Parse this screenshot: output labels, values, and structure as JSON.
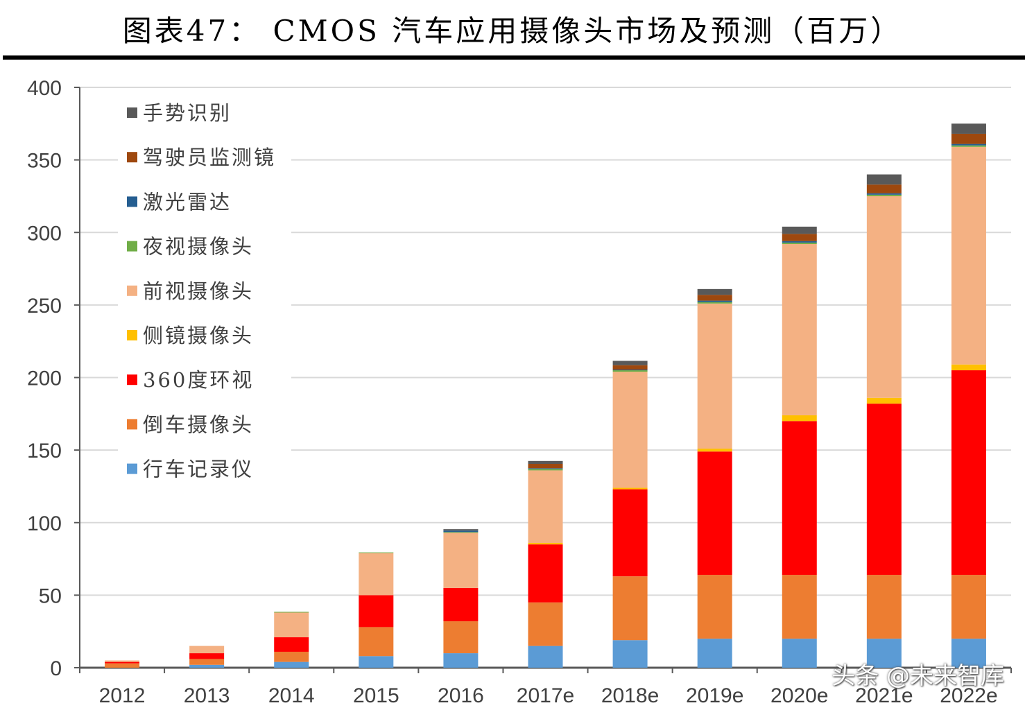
{
  "title": "图表47：  CMOS 汽车应用摄像头市场及预测（百万）",
  "watermark": "头条 @未来智库",
  "chart_data": {
    "type": "bar",
    "stacked": true,
    "categories": [
      "2012",
      "2013",
      "2014",
      "2015",
      "2016",
      "2017e",
      "2018e",
      "2019e",
      "2020e",
      "2021e",
      "2022e"
    ],
    "ylim": [
      0,
      400
    ],
    "yticks": [
      0,
      50,
      100,
      150,
      200,
      250,
      300,
      350,
      400
    ],
    "grid": true,
    "legend_position": "top-left",
    "series": [
      {
        "name": "行车记录仪",
        "color": "#5b9bd5",
        "values": [
          0,
          2,
          4,
          8,
          10,
          15,
          19,
          20,
          20,
          20,
          20
        ]
      },
      {
        "name": "倒车摄像头",
        "color": "#ed7d31",
        "values": [
          3,
          4,
          7,
          20,
          22,
          30,
          44,
          44,
          44,
          44,
          44
        ]
      },
      {
        "name": "360度环视",
        "color": "#ff0000",
        "values": [
          1,
          4,
          10,
          22,
          23,
          40,
          60,
          85,
          106,
          118,
          141
        ]
      },
      {
        "name": "侧镜摄像头",
        "color": "#ffc000",
        "values": [
          0,
          0,
          0,
          0,
          0,
          1,
          1,
          2,
          4,
          4,
          4
        ]
      },
      {
        "name": "前视摄像头",
        "color": "#f4b183",
        "values": [
          1,
          5,
          17,
          29,
          38,
          50,
          80,
          100,
          118,
          139,
          150
        ]
      },
      {
        "name": "夜视摄像头",
        "color": "#70ad47",
        "values": [
          0,
          0,
          0.5,
          0.5,
          0.5,
          1,
          1,
          1,
          1,
          1,
          1
        ]
      },
      {
        "name": "激光雷达",
        "color": "#255e91",
        "values": [
          0,
          0,
          0,
          0,
          1,
          0.5,
          0.5,
          1,
          1,
          1,
          1
        ]
      },
      {
        "name": "驾驶员监测镜",
        "color": "#9e480e",
        "values": [
          0,
          0,
          0,
          0,
          0,
          3,
          3,
          4,
          5,
          6,
          7
        ]
      },
      {
        "name": "手势识别",
        "color": "#595959",
        "values": [
          0,
          0,
          0,
          0,
          1,
          2,
          3,
          4,
          5,
          7,
          7
        ]
      }
    ],
    "legend_order": [
      "手势识别",
      "驾驶员监测镜",
      "激光雷达",
      "夜视摄像头",
      "前视摄像头",
      "侧镜摄像头",
      "360度环视",
      "倒车摄像头",
      "行车记录仪"
    ]
  }
}
